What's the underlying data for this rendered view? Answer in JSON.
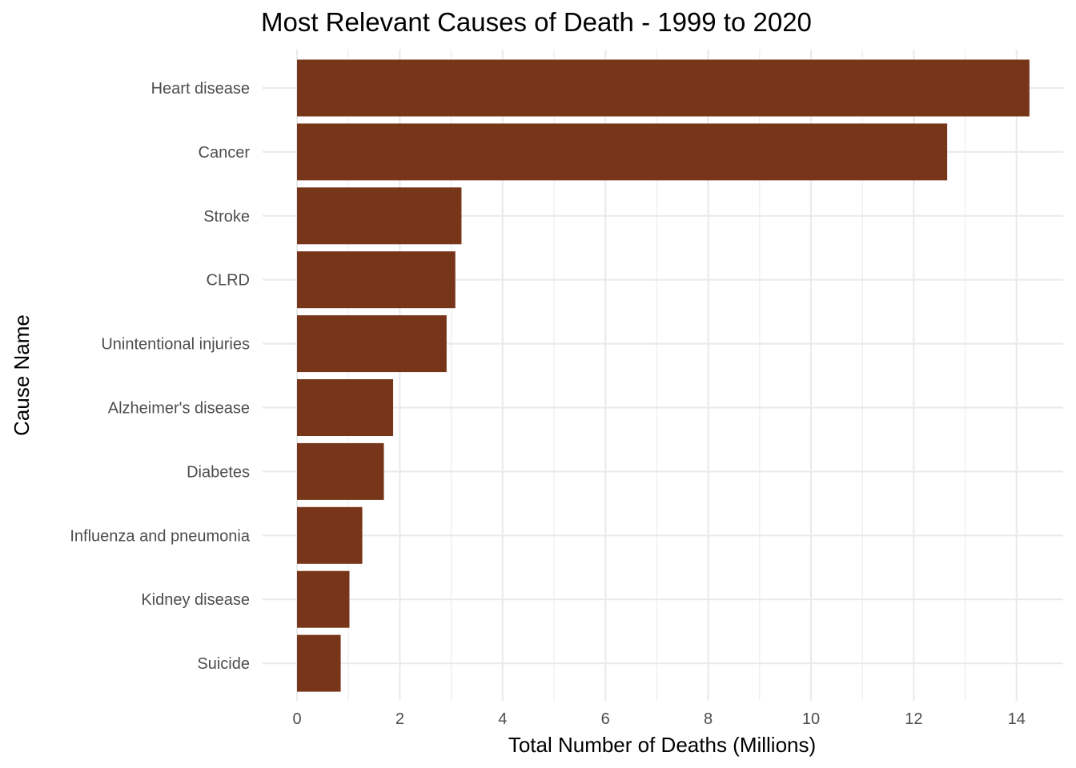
{
  "chart_data": {
    "type": "bar",
    "orientation": "horizontal",
    "title": "Most Relevant Causes of Death - 1999 to 2020",
    "xlabel": "Total Number of Deaths (Millions)",
    "ylabel": "Cause Name",
    "categories": [
      "Heart disease",
      "Cancer",
      "Stroke",
      "CLRD",
      "Unintentional injuries",
      "Alzheimer's disease",
      "Diabetes",
      "Influenza and pneumonia",
      "Kidney disease",
      "Suicide"
    ],
    "values": [
      14.25,
      12.65,
      3.2,
      3.08,
      2.91,
      1.87,
      1.69,
      1.27,
      1.02,
      0.85
    ],
    "xticks": [
      0,
      2,
      4,
      6,
      8,
      10,
      12,
      14
    ],
    "xlim": [
      0,
      14.95
    ],
    "bar_color": "#77361a",
    "grid": true,
    "legend": "none"
  }
}
